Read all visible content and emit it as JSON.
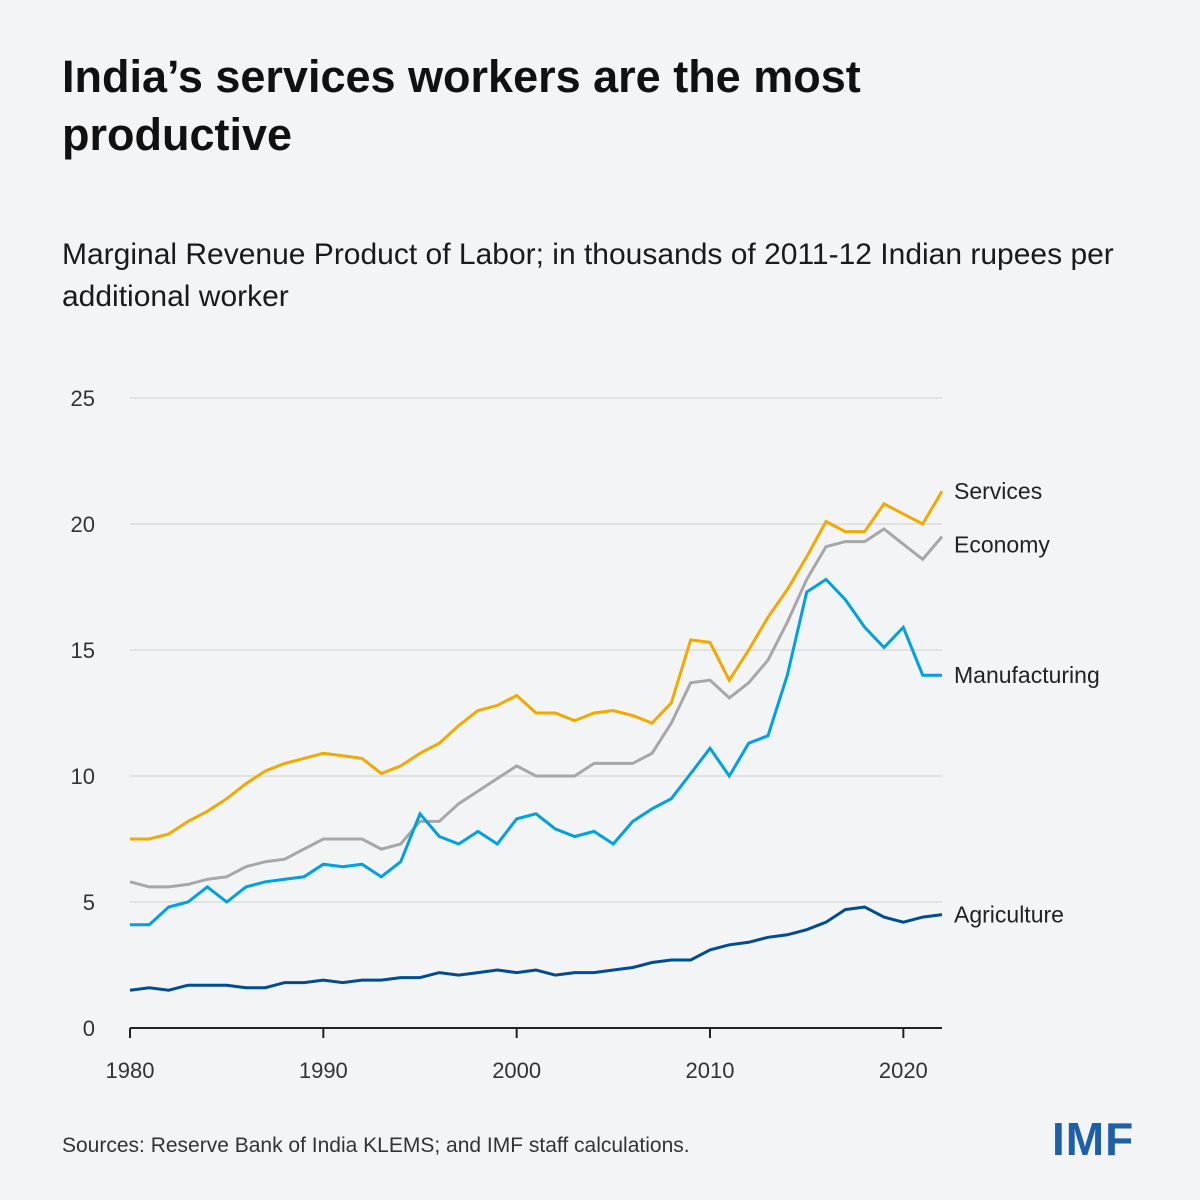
{
  "title": "India’s services workers are the most productive",
  "subtitle": "Marginal Revenue Product of Labor; in thousands of 2011-12 Indian rupees per additional worker",
  "source": "Sources: Reserve Bank of India KLEMS; and IMF staff calculations.",
  "logo": "IMF",
  "chart_data": {
    "type": "line",
    "title": "",
    "xlabel": "",
    "ylabel": "",
    "xlim": [
      1980,
      2022
    ],
    "ylim": [
      0,
      25
    ],
    "grid": true,
    "legend": "direct labels at right",
    "x_ticks": [
      "1980",
      "1990",
      "2000",
      "2010",
      "2020"
    ],
    "y_ticks": [
      "0",
      "5",
      "10",
      "15",
      "20",
      "25"
    ],
    "x": [
      1980,
      1981,
      1982,
      1983,
      1984,
      1985,
      1986,
      1987,
      1988,
      1989,
      1990,
      1991,
      1992,
      1993,
      1994,
      1995,
      1996,
      1997,
      1998,
      1999,
      2000,
      2001,
      2002,
      2003,
      2004,
      2005,
      2006,
      2007,
      2008,
      2009,
      2010,
      2011,
      2012,
      2013,
      2014,
      2015,
      2016,
      2017,
      2018,
      2019,
      2020,
      2021,
      2022
    ],
    "series": [
      {
        "name": "Services",
        "color": "#f2a900",
        "values": [
          7.5,
          7.5,
          7.7,
          8.2,
          8.6,
          9.1,
          9.7,
          10.2,
          10.5,
          10.7,
          10.9,
          10.8,
          10.7,
          10.1,
          10.4,
          10.9,
          11.3,
          12.0,
          12.6,
          12.8,
          13.2,
          12.5,
          12.5,
          12.2,
          12.5,
          12.6,
          12.4,
          12.1,
          12.9,
          15.4,
          15.3,
          13.8,
          15.0,
          16.3,
          17.4,
          18.7,
          20.1,
          19.7,
          19.7,
          20.8,
          20.4,
          20.0,
          21.3
        ]
      },
      {
        "name": "Economy",
        "color": "#a7a7a7",
        "values": [
          5.8,
          5.6,
          5.6,
          5.7,
          5.9,
          6.0,
          6.4,
          6.6,
          6.7,
          7.1,
          7.5,
          7.5,
          7.5,
          7.1,
          7.3,
          8.2,
          8.2,
          8.9,
          9.4,
          9.9,
          10.4,
          10.0,
          10.0,
          10.0,
          10.5,
          10.5,
          10.5,
          10.9,
          12.1,
          13.7,
          13.8,
          13.1,
          13.7,
          14.6,
          16.1,
          17.8,
          19.1,
          19.3,
          19.3,
          19.8,
          19.2,
          18.6,
          19.5
        ]
      },
      {
        "name": "Manufacturing",
        "color": "#00a1e0",
        "values": [
          4.1,
          4.1,
          4.8,
          5.0,
          5.6,
          5.0,
          5.6,
          5.8,
          5.9,
          6.0,
          6.5,
          6.4,
          6.5,
          6.0,
          6.6,
          8.5,
          7.6,
          7.3,
          7.8,
          7.3,
          8.3,
          8.5,
          7.9,
          7.6,
          7.8,
          7.3,
          8.2,
          8.7,
          9.1,
          10.1,
          11.1,
          10.0,
          11.3,
          11.6,
          14.0,
          17.3,
          17.8,
          17.0,
          15.9,
          15.1,
          15.9,
          14.0,
          14.0
        ]
      },
      {
        "name": "Agriculture",
        "color": "#004c97",
        "values": [
          1.5,
          1.6,
          1.5,
          1.7,
          1.7,
          1.7,
          1.6,
          1.6,
          1.8,
          1.8,
          1.9,
          1.8,
          1.9,
          1.9,
          2.0,
          2.0,
          2.2,
          2.1,
          2.2,
          2.3,
          2.2,
          2.3,
          2.1,
          2.2,
          2.2,
          2.3,
          2.4,
          2.6,
          2.7,
          2.7,
          3.1,
          3.3,
          3.4,
          3.6,
          3.7,
          3.9,
          4.2,
          4.7,
          4.8,
          4.4,
          4.2,
          4.4,
          4.5
        ]
      }
    ]
  }
}
